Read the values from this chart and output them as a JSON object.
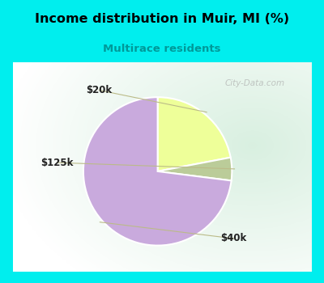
{
  "title": "Income distribution in Muir, MI (%)",
  "subtitle": "Multirace residents",
  "subtitle_color": "#009999",
  "title_color": "#000000",
  "background_color": "#00EEEE",
  "slices": [
    {
      "label": "$20k",
      "value": 22,
      "color": "#EEFF99"
    },
    {
      "label": "$125k",
      "value": 5,
      "color": "#BBCC99"
    },
    {
      "label": "$40k",
      "value": 73,
      "color": "#C9AADD"
    }
  ],
  "watermark": "City-Data.com",
  "watermark_color": "#AAAAAA",
  "chart_bg_colors": [
    "#c5e8d5",
    "#e8f4f0",
    "#f5faf8",
    "#ffffff"
  ],
  "label_color": "#222222",
  "line_color": "#BBBB88"
}
